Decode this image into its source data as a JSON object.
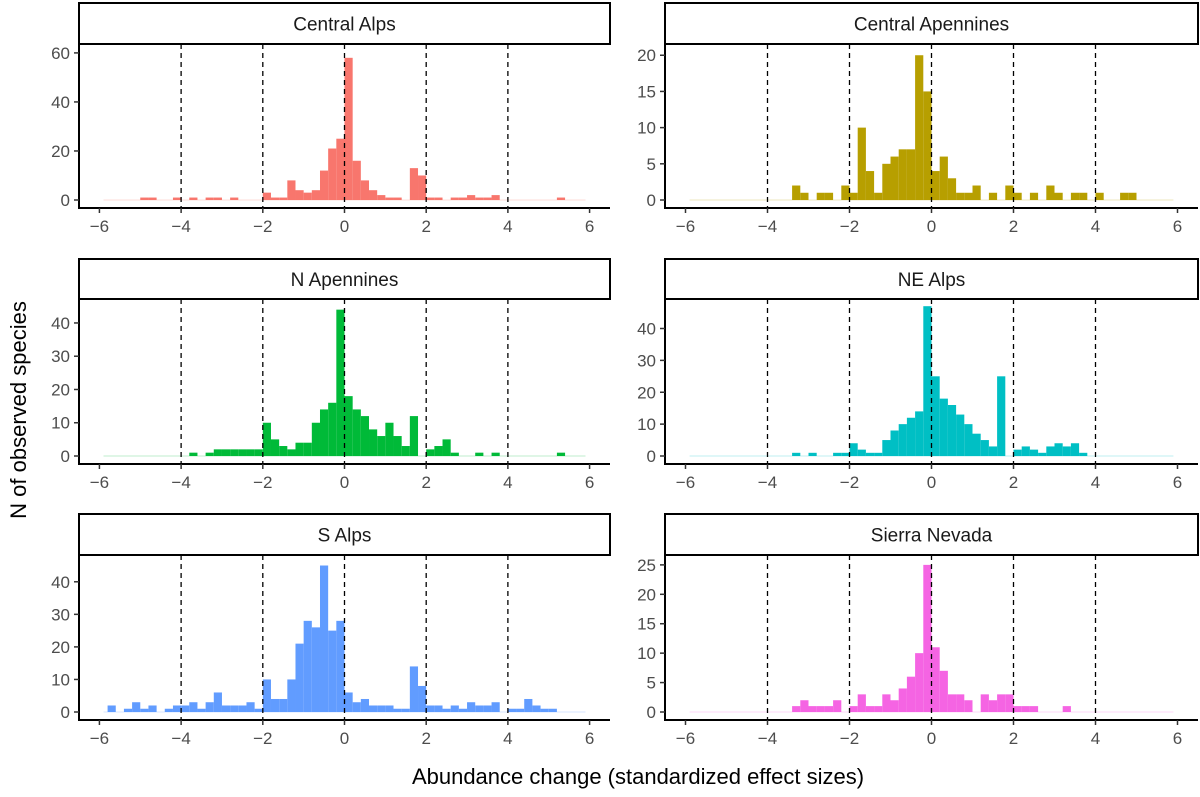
{
  "chart_data": {
    "type": "bar",
    "subtype": "histogram-facets",
    "xlabel": "Abundance change (standardized effect sizes)",
    "ylabel": "N of observed species",
    "xlim": [
      -6.5,
      6.5
    ],
    "xticks": [
      -6,
      -4,
      -2,
      0,
      2,
      4,
      6
    ],
    "bin_width": 0.2,
    "reference_lines": [
      -4,
      -2,
      0,
      2,
      4
    ],
    "panels": [
      {
        "name": "Central Alps",
        "color": "#F8766D",
        "ylim": [
          0,
          62
        ],
        "yticks": [
          0,
          20,
          40,
          60
        ],
        "bins": [
          [
            -4.9,
            1
          ],
          [
            -4.7,
            1
          ],
          [
            -4.1,
            1
          ],
          [
            -3.7,
            1
          ],
          [
            -3.3,
            1
          ],
          [
            -3.1,
            1
          ],
          [
            -2.7,
            1
          ],
          [
            -1.9,
            3
          ],
          [
            -1.7,
            1
          ],
          [
            -1.5,
            1
          ],
          [
            -1.3,
            8
          ],
          [
            -1.1,
            4
          ],
          [
            -0.9,
            3
          ],
          [
            -0.7,
            4
          ],
          [
            -0.5,
            12
          ],
          [
            -0.3,
            21
          ],
          [
            -0.1,
            25
          ],
          [
            0.1,
            58
          ],
          [
            0.3,
            16
          ],
          [
            0.5,
            8
          ],
          [
            0.7,
            4
          ],
          [
            0.9,
            2
          ],
          [
            1.1,
            1
          ],
          [
            1.3,
            1
          ],
          [
            1.7,
            13
          ],
          [
            1.9,
            10
          ],
          [
            2.1,
            1
          ],
          [
            2.3,
            1
          ],
          [
            2.7,
            1
          ],
          [
            2.9,
            1
          ],
          [
            3.1,
            2
          ],
          [
            3.3,
            1
          ],
          [
            3.5,
            1
          ],
          [
            3.7,
            2
          ],
          [
            5.3,
            1
          ]
        ]
      },
      {
        "name": "Central Apennines",
        "color": "#B79F00",
        "ylim": [
          0,
          21
        ],
        "yticks": [
          0,
          5,
          10,
          15,
          20
        ],
        "bins": [
          [
            -3.3,
            2
          ],
          [
            -3.1,
            1
          ],
          [
            -2.7,
            1
          ],
          [
            -2.5,
            1
          ],
          [
            -2.1,
            2
          ],
          [
            -1.9,
            1
          ],
          [
            -1.7,
            10
          ],
          [
            -1.5,
            4
          ],
          [
            -1.3,
            1
          ],
          [
            -1.1,
            5
          ],
          [
            -0.9,
            6
          ],
          [
            -0.7,
            7
          ],
          [
            -0.5,
            7
          ],
          [
            -0.3,
            20
          ],
          [
            -0.1,
            15
          ],
          [
            0.1,
            4
          ],
          [
            0.3,
            6
          ],
          [
            0.5,
            3
          ],
          [
            0.7,
            1
          ],
          [
            0.9,
            1
          ],
          [
            1.1,
            2
          ],
          [
            1.5,
            1
          ],
          [
            1.9,
            2
          ],
          [
            2.1,
            1
          ],
          [
            2.5,
            1
          ],
          [
            2.9,
            2
          ],
          [
            3.1,
            1
          ],
          [
            3.5,
            1
          ],
          [
            3.7,
            1
          ],
          [
            4.1,
            1
          ],
          [
            4.7,
            1
          ],
          [
            4.9,
            1
          ]
        ]
      },
      {
        "name": "N Apennines",
        "color": "#00BA38",
        "ylim": [
          0,
          46
        ],
        "yticks": [
          0,
          10,
          20,
          30,
          40
        ],
        "bins": [
          [
            -3.7,
            1
          ],
          [
            -3.3,
            1
          ],
          [
            -3.1,
            2
          ],
          [
            -2.9,
            2
          ],
          [
            -2.7,
            2
          ],
          [
            -2.5,
            2
          ],
          [
            -2.3,
            2
          ],
          [
            -2.1,
            2
          ],
          [
            -1.9,
            10
          ],
          [
            -1.7,
            5
          ],
          [
            -1.5,
            3
          ],
          [
            -1.3,
            2
          ],
          [
            -1.1,
            4
          ],
          [
            -0.9,
            4
          ],
          [
            -0.7,
            10
          ],
          [
            -0.5,
            14
          ],
          [
            -0.3,
            16
          ],
          [
            -0.1,
            44
          ],
          [
            0.1,
            18
          ],
          [
            0.3,
            14
          ],
          [
            0.5,
            12
          ],
          [
            0.7,
            8
          ],
          [
            0.9,
            6
          ],
          [
            1.1,
            10
          ],
          [
            1.3,
            6
          ],
          [
            1.5,
            3
          ],
          [
            1.7,
            12
          ],
          [
            2.1,
            2
          ],
          [
            2.3,
            3
          ],
          [
            2.5,
            5
          ],
          [
            2.7,
            1
          ],
          [
            3.3,
            1
          ],
          [
            3.7,
            1
          ],
          [
            5.3,
            1
          ]
        ]
      },
      {
        "name": "NE Alps",
        "color": "#00BFC4",
        "ylim": [
          0,
          48
        ],
        "yticks": [
          0,
          10,
          20,
          30,
          40
        ],
        "bins": [
          [
            -3.3,
            1
          ],
          [
            -2.9,
            1
          ],
          [
            -2.3,
            1
          ],
          [
            -2.1,
            1
          ],
          [
            -1.9,
            4
          ],
          [
            -1.7,
            2
          ],
          [
            -1.5,
            1
          ],
          [
            -1.3,
            1
          ],
          [
            -1.1,
            5
          ],
          [
            -0.9,
            8
          ],
          [
            -0.7,
            10
          ],
          [
            -0.5,
            12
          ],
          [
            -0.3,
            14
          ],
          [
            -0.1,
            47
          ],
          [
            0.1,
            25
          ],
          [
            0.3,
            18
          ],
          [
            0.5,
            16
          ],
          [
            0.7,
            13
          ],
          [
            0.9,
            10
          ],
          [
            1.1,
            7
          ],
          [
            1.3,
            5
          ],
          [
            1.5,
            3
          ],
          [
            1.7,
            25
          ],
          [
            2.1,
            2
          ],
          [
            2.3,
            3
          ],
          [
            2.5,
            2
          ],
          [
            2.7,
            1
          ],
          [
            2.9,
            3
          ],
          [
            3.1,
            4
          ],
          [
            3.3,
            3
          ],
          [
            3.5,
            4
          ],
          [
            3.7,
            1
          ]
        ]
      },
      {
        "name": "S Alps",
        "color": "#619CFF",
        "ylim": [
          0,
          47
        ],
        "yticks": [
          0,
          10,
          20,
          30,
          40
        ],
        "bins": [
          [
            -5.7,
            2
          ],
          [
            -5.3,
            1
          ],
          [
            -5.1,
            3
          ],
          [
            -4.9,
            1
          ],
          [
            -4.7,
            2
          ],
          [
            -4.3,
            1
          ],
          [
            -4.1,
            2
          ],
          [
            -3.9,
            2
          ],
          [
            -3.7,
            3
          ],
          [
            -3.5,
            1
          ],
          [
            -3.3,
            3
          ],
          [
            -3.1,
            6
          ],
          [
            -2.9,
            2
          ],
          [
            -2.7,
            2
          ],
          [
            -2.5,
            2
          ],
          [
            -2.3,
            3
          ],
          [
            -2.1,
            1
          ],
          [
            -1.9,
            10
          ],
          [
            -1.7,
            4
          ],
          [
            -1.5,
            4
          ],
          [
            -1.3,
            10
          ],
          [
            -1.1,
            21
          ],
          [
            -0.9,
            28
          ],
          [
            -0.7,
            26
          ],
          [
            -0.5,
            45
          ],
          [
            -0.3,
            25
          ],
          [
            -0.1,
            28
          ],
          [
            0.1,
            6
          ],
          [
            0.3,
            3
          ],
          [
            0.5,
            4
          ],
          [
            0.7,
            2
          ],
          [
            0.9,
            2
          ],
          [
            1.1,
            2
          ],
          [
            1.3,
            1
          ],
          [
            1.5,
            1
          ],
          [
            1.7,
            14
          ],
          [
            1.9,
            8
          ],
          [
            2.1,
            2
          ],
          [
            2.3,
            2
          ],
          [
            2.5,
            1
          ],
          [
            2.7,
            2
          ],
          [
            2.9,
            1
          ],
          [
            3.1,
            3
          ],
          [
            3.3,
            2
          ],
          [
            3.5,
            2
          ],
          [
            3.7,
            3
          ],
          [
            4.1,
            1
          ],
          [
            4.3,
            1
          ],
          [
            4.5,
            4
          ],
          [
            4.7,
            2
          ],
          [
            4.9,
            1
          ],
          [
            5.1,
            1
          ]
        ]
      },
      {
        "name": "Sierra Nevada",
        "color": "#F564E3",
        "ylim": [
          0,
          26
        ],
        "yticks": [
          0,
          5,
          10,
          15,
          20,
          25
        ],
        "bins": [
          [
            -3.3,
            1
          ],
          [
            -3.1,
            2
          ],
          [
            -2.9,
            1
          ],
          [
            -2.7,
            1
          ],
          [
            -2.5,
            1
          ],
          [
            -2.3,
            2
          ],
          [
            -1.9,
            1
          ],
          [
            -1.7,
            3
          ],
          [
            -1.5,
            1
          ],
          [
            -1.3,
            1
          ],
          [
            -1.1,
            3
          ],
          [
            -0.9,
            2
          ],
          [
            -0.7,
            4
          ],
          [
            -0.5,
            6
          ],
          [
            -0.3,
            10
          ],
          [
            -0.1,
            25
          ],
          [
            0.1,
            11
          ],
          [
            0.3,
            7
          ],
          [
            0.5,
            3
          ],
          [
            0.7,
            3
          ],
          [
            0.9,
            2
          ],
          [
            1.3,
            3
          ],
          [
            1.5,
            2
          ],
          [
            1.7,
            3
          ],
          [
            1.9,
            3
          ],
          [
            2.1,
            1
          ],
          [
            2.3,
            1
          ],
          [
            2.5,
            1
          ],
          [
            3.3,
            1
          ]
        ]
      }
    ]
  }
}
